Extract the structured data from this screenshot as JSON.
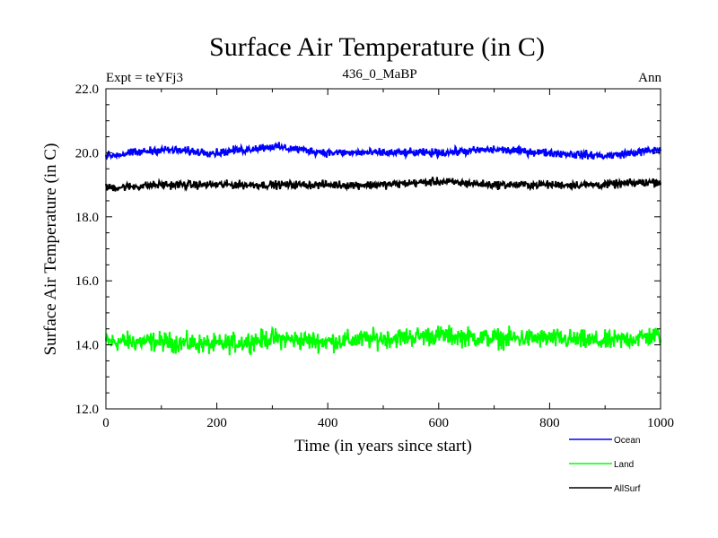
{
  "chart_data": {
    "type": "line",
    "title": "Surface Air Temperature (in C)",
    "subtitle_left": "Expt = teYFj3",
    "subtitle_center": "436_0_MaBP",
    "subtitle_right": "Ann",
    "xlabel": "Time (in years since start)",
    "ylabel": "Surface Air Temperature (in C)",
    "xlim": [
      0,
      1000
    ],
    "ylim": [
      12.0,
      22.0
    ],
    "xticks": [
      0,
      200,
      400,
      600,
      800,
      1000
    ],
    "xtick_labels": [
      "0",
      "200",
      "400",
      "600",
      "800",
      "1000"
    ],
    "yticks": [
      12.0,
      14.0,
      16.0,
      18.0,
      20.0,
      22.0
    ],
    "ytick_labels": [
      "12.0",
      "14.0",
      "16.0",
      "18.0",
      "20.0",
      "22.0"
    ],
    "legend_position": "bottom-right, outside plot",
    "series": [
      {
        "name": "Ocean",
        "color": "#0000ff",
        "mean": 20.0,
        "noise": 0.09,
        "values": [
          19.9,
          20.1,
          20.0,
          20.2,
          20.0,
          20.0,
          20.0,
          20.1,
          20.0,
          19.9,
          20.1
        ]
      },
      {
        "name": "Land",
        "color": "#00ff00",
        "mean": 14.1,
        "noise": 0.22,
        "values": [
          14.1,
          14.1,
          14.0,
          14.2,
          14.1,
          14.2,
          14.3,
          14.2,
          14.2,
          14.1,
          14.3
        ]
      },
      {
        "name": "AllSurf",
        "color": "#000000",
        "mean": 19.0,
        "noise": 0.09,
        "values": [
          18.9,
          19.0,
          19.0,
          19.0,
          19.0,
          19.0,
          19.1,
          19.0,
          19.0,
          19.0,
          19.1
        ]
      }
    ]
  }
}
